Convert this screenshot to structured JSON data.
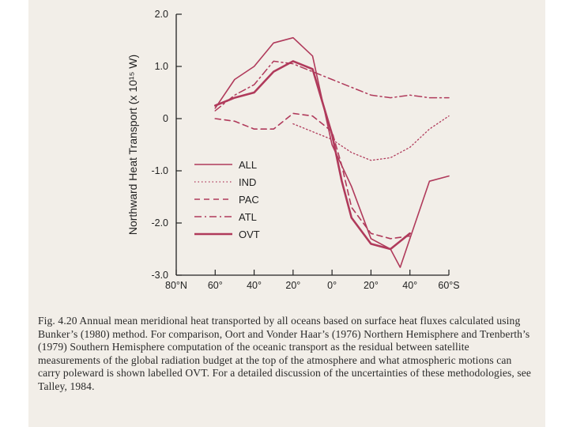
{
  "chart_data": {
    "type": "line",
    "xlabel": "",
    "ylabel": "Northward Heat Transport (x 10¹⁵ W)",
    "x_ticks": [
      80,
      60,
      40,
      20,
      0,
      -20,
      -40,
      -60
    ],
    "x_tick_labels": [
      "80°N",
      "60°",
      "40°",
      "20°",
      "0°",
      "20°",
      "40°",
      "60°S"
    ],
    "y_ticks": [
      2.0,
      1.0,
      0,
      -1.0,
      -2.0,
      -3.0
    ],
    "y_tick_labels": [
      "2.0",
      "1.0",
      "0",
      "-1.0",
      "-2.0",
      "-3.0"
    ],
    "xlim": [
      80,
      -60
    ],
    "ylim": [
      -3.0,
      2.0
    ],
    "series": [
      {
        "name": "ALL",
        "style": "solid",
        "color": "#b03a5b",
        "x": [
          60,
          50,
          40,
          30,
          20,
          10,
          0,
          -10,
          -20,
          -30,
          -35,
          -40,
          -50,
          -60
        ],
        "y": [
          0.2,
          0.75,
          1.0,
          1.45,
          1.55,
          1.2,
          -0.5,
          -1.3,
          -2.3,
          -2.5,
          -2.85,
          -2.3,
          -1.2,
          -1.1
        ]
      },
      {
        "name": "IND",
        "style": "dotted",
        "color": "#b03a5b",
        "x": [
          20,
          10,
          0,
          -10,
          -20,
          -30,
          -40,
          -50,
          -60
        ],
        "y": [
          -0.1,
          -0.25,
          -0.4,
          -0.65,
          -0.8,
          -0.75,
          -0.55,
          -0.2,
          0.05
        ]
      },
      {
        "name": "PAC",
        "style": "dashed",
        "color": "#b03a5b",
        "x": [
          60,
          50,
          40,
          30,
          20,
          10,
          0,
          -5,
          -10,
          -20,
          -30,
          -40
        ],
        "y": [
          0.0,
          -0.05,
          -0.2,
          -0.2,
          0.1,
          0.05,
          -0.25,
          -0.9,
          -1.7,
          -2.2,
          -2.3,
          -2.25
        ]
      },
      {
        "name": "ATL",
        "style": "dashdot",
        "color": "#b03a5b",
        "x": [
          60,
          50,
          40,
          30,
          20,
          10,
          0,
          -10,
          -20,
          -30,
          -40,
          -50,
          -60
        ],
        "y": [
          0.15,
          0.45,
          0.65,
          1.1,
          1.05,
          0.9,
          0.75,
          0.6,
          0.45,
          0.4,
          0.45,
          0.4,
          0.4
        ]
      },
      {
        "name": "OVT",
        "style": "solid-bold",
        "color": "#b03a5b",
        "x": [
          60,
          50,
          40,
          30,
          20,
          10,
          0,
          -5,
          -10,
          -20,
          -30,
          -40
        ],
        "y": [
          0.25,
          0.4,
          0.5,
          0.9,
          1.1,
          0.95,
          -0.3,
          -1.2,
          -1.9,
          -2.4,
          -2.5,
          -2.2
        ]
      }
    ],
    "legend": [
      "ALL",
      "IND",
      "PAC",
      "ATL",
      "OVT"
    ],
    "legend_position": "lower-left"
  },
  "caption": {
    "label": "Fig. 4.20",
    "text": "Annual mean meridional heat transported by all oceans based on surface heat fluxes calculated using Bunker’s (1980) method. For comparison, Oort and Vonder Haar’s (1976) Northern Hemisphere and Trenberth’s (1979) Southern Hemisphere computation of the oceanic transport as the residual between satellite measurements of the global radiation budget at the top of the atmosphere and what atmospheric motions can carry poleward is shown labelled OVT. For a detailed discussion of the uncertainties of these methodologies, see Talley, 1984."
  },
  "colors": {
    "line": "#b03a5b",
    "axis": "#222222",
    "page": "#f2eee8"
  }
}
